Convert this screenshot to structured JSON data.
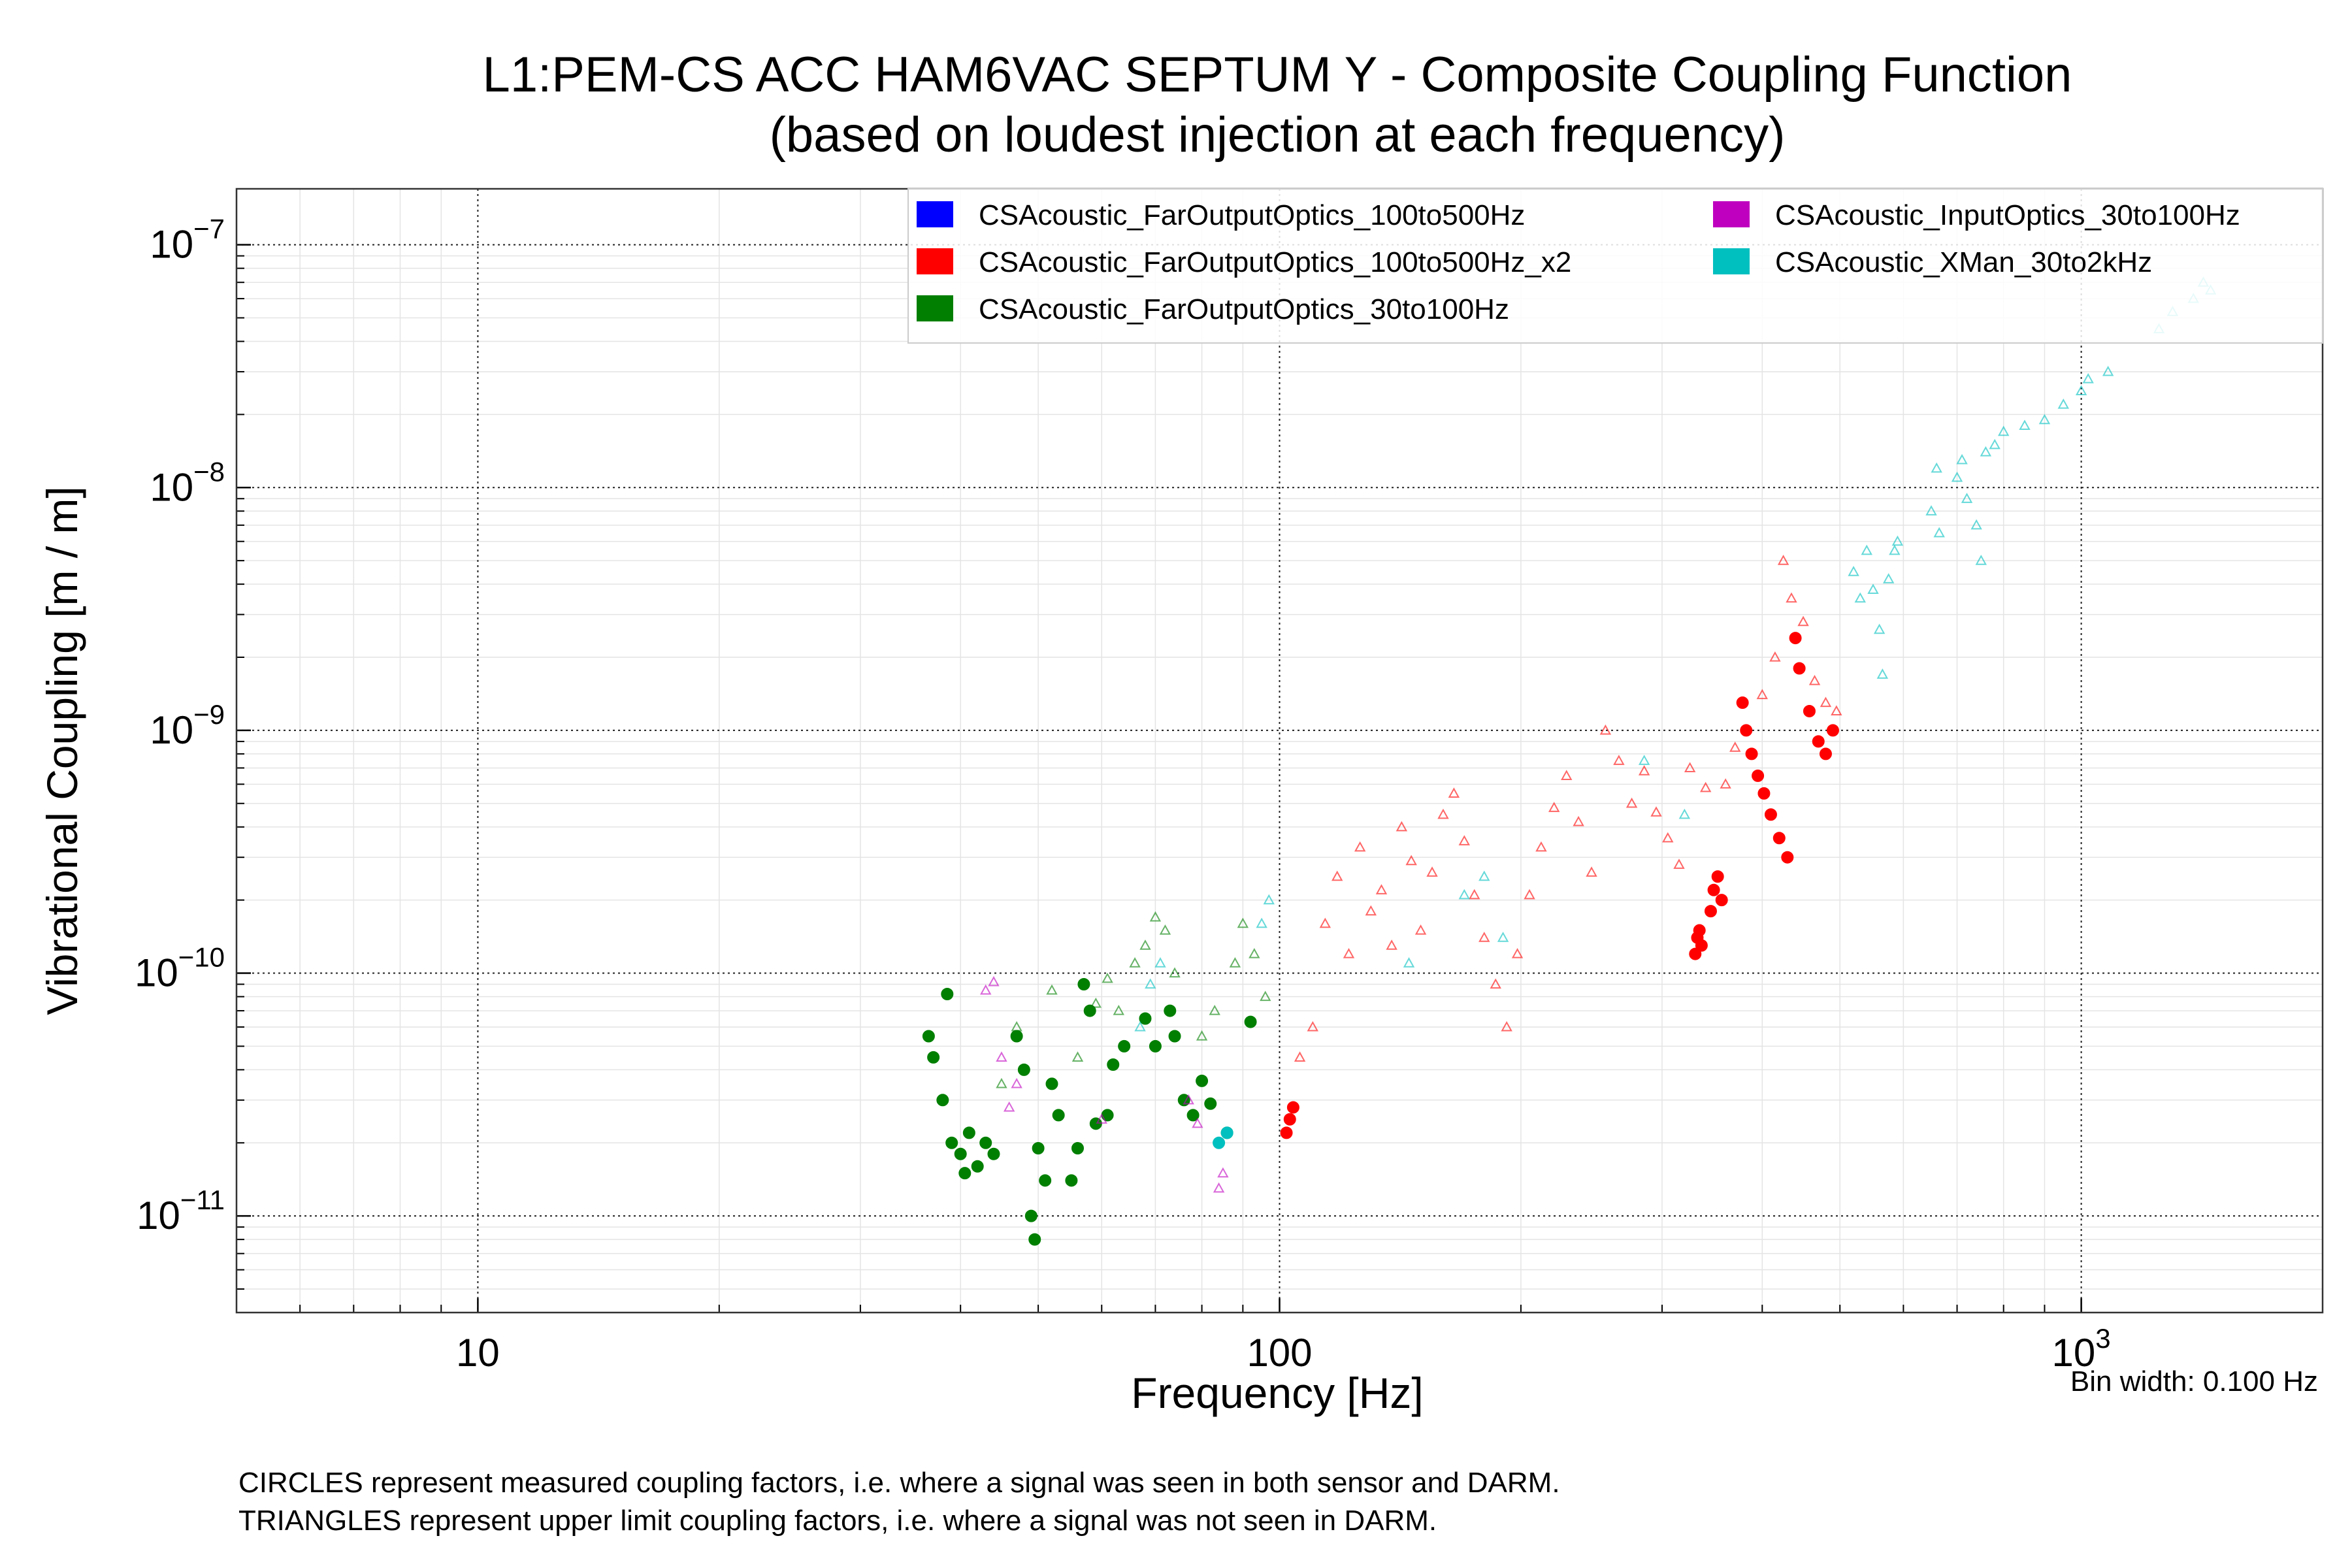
{
  "chart_data": {
    "type": "scatter",
    "title": "L1:PEM-CS ACC HAM6VAC SEPTUM Y - Composite Coupling Function",
    "subtitle": "(based on loudest injection at each frequency)",
    "xlabel": "Frequency [Hz]",
    "ylabel": "Vibrational Coupling [m / m]",
    "x_scale": "log",
    "y_scale": "log",
    "xlim": [
      5,
      2000
    ],
    "ylim": [
      4e-12,
      1.7e-07
    ],
    "x_ticks": [
      {
        "value": 10,
        "label": "10"
      },
      {
        "value": 100,
        "label": "100"
      },
      {
        "value": 1000,
        "label": "10^3"
      }
    ],
    "y_ticks": [
      {
        "value": 1e-11,
        "label": "10^-11"
      },
      {
        "value": 1e-10,
        "label": "10^-10"
      },
      {
        "value": 1e-09,
        "label": "10^-9"
      },
      {
        "value": 1e-08,
        "label": "10^-8"
      },
      {
        "value": 1e-07,
        "label": "10^-7"
      }
    ],
    "grid": true,
    "legend_position": "top-right",
    "bin_width_label": "Bin width: 0.100 Hz",
    "notes": [
      "CIRCLES represent measured coupling factors, i.e. where a signal was seen in both sensor and DARM.",
      "TRIANGLES represent upper limit coupling factors, i.e. where a signal was not seen in DARM."
    ],
    "series": [
      {
        "name": "CSAcoustic_FarOutputOptics_100to500Hz",
        "color": "#0000ff",
        "measured": [],
        "upper_limits": []
      },
      {
        "name": "CSAcoustic_FarOutputOptics_100to500Hz_x2",
        "color": "#ff0000",
        "measured": [
          [
            102,
            2.2e-11
          ],
          [
            103,
            2.5e-11
          ],
          [
            104,
            2.8e-11
          ],
          [
            330,
            1.2e-10
          ],
          [
            332,
            1.4e-10
          ],
          [
            334,
            1.5e-10
          ],
          [
            336,
            1.3e-10
          ],
          [
            345,
            1.8e-10
          ],
          [
            348,
            2.2e-10
          ],
          [
            352,
            2.5e-10
          ],
          [
            356,
            2e-10
          ],
          [
            378,
            1.3e-09
          ],
          [
            382,
            1e-09
          ],
          [
            388,
            8e-10
          ],
          [
            395,
            6.5e-10
          ],
          [
            402,
            5.5e-10
          ],
          [
            410,
            4.5e-10
          ],
          [
            420,
            3.6e-10
          ],
          [
            430,
            3e-10
          ],
          [
            440,
            2.4e-09
          ],
          [
            445,
            1.8e-09
          ],
          [
            458,
            1.2e-09
          ],
          [
            470,
            9e-10
          ],
          [
            480,
            8e-10
          ],
          [
            490,
            1e-09
          ]
        ],
        "upper_limits": [
          [
            106,
            4.5e-11
          ],
          [
            110,
            6e-11
          ],
          [
            114,
            1.6e-10
          ],
          [
            118,
            2.5e-10
          ],
          [
            122,
            1.2e-10
          ],
          [
            126,
            3.3e-10
          ],
          [
            130,
            1.8e-10
          ],
          [
            134,
            2.2e-10
          ],
          [
            138,
            1.3e-10
          ],
          [
            142,
            4e-10
          ],
          [
            146,
            2.9e-10
          ],
          [
            150,
            1.5e-10
          ],
          [
            155,
            2.6e-10
          ],
          [
            160,
            4.5e-10
          ],
          [
            165,
            5.5e-10
          ],
          [
            170,
            3.5e-10
          ],
          [
            175,
            2.1e-10
          ],
          [
            180,
            1.4e-10
          ],
          [
            186,
            9e-11
          ],
          [
            192,
            6e-11
          ],
          [
            198,
            1.2e-10
          ],
          [
            205,
            2.1e-10
          ],
          [
            212,
            3.3e-10
          ],
          [
            220,
            4.8e-10
          ],
          [
            228,
            6.5e-10
          ],
          [
            236,
            4.2e-10
          ],
          [
            245,
            2.6e-10
          ],
          [
            255,
            1e-09
          ],
          [
            265,
            7.5e-10
          ],
          [
            275,
            5e-10
          ],
          [
            285,
            6.8e-10
          ],
          [
            295,
            4.6e-10
          ],
          [
            305,
            3.6e-10
          ],
          [
            315,
            2.8e-10
          ],
          [
            325,
            7e-10
          ],
          [
            340,
            5.8e-10
          ],
          [
            360,
            6e-10
          ],
          [
            370,
            8.5e-10
          ],
          [
            400,
            1.4e-09
          ],
          [
            415,
            2e-09
          ],
          [
            425,
            5e-09
          ],
          [
            435,
            3.5e-09
          ],
          [
            450,
            2.8e-09
          ],
          [
            465,
            1.6e-09
          ],
          [
            480,
            1.3e-09
          ],
          [
            495,
            1.2e-09
          ]
        ]
      },
      {
        "name": "CSAcoustic_FarOutputOptics_30to100Hz",
        "color": "#007f00",
        "measured": [
          [
            36.5,
            5.5e-11
          ],
          [
            37,
            4.5e-11
          ],
          [
            38,
            3e-11
          ],
          [
            38.5,
            8.2e-11
          ],
          [
            39,
            2e-11
          ],
          [
            40,
            1.8e-11
          ],
          [
            40.5,
            1.5e-11
          ],
          [
            41,
            2.2e-11
          ],
          [
            42,
            1.6e-11
          ],
          [
            43,
            2e-11
          ],
          [
            44,
            1.8e-11
          ],
          [
            47,
            5.5e-11
          ],
          [
            48,
            4e-11
          ],
          [
            49,
            1e-11
          ],
          [
            49.5,
            8e-12
          ],
          [
            50,
            1.9e-11
          ],
          [
            51,
            1.4e-11
          ],
          [
            52,
            3.5e-11
          ],
          [
            53,
            2.6e-11
          ],
          [
            55,
            1.4e-11
          ],
          [
            56,
            1.9e-11
          ],
          [
            57,
            9e-11
          ],
          [
            58,
            7e-11
          ],
          [
            59,
            2.4e-11
          ],
          [
            61,
            2.6e-11
          ],
          [
            62,
            4.2e-11
          ],
          [
            64,
            5e-11
          ],
          [
            68,
            6.5e-11
          ],
          [
            70,
            5e-11
          ],
          [
            73,
            7e-11
          ],
          [
            74,
            5.5e-11
          ],
          [
            76,
            3e-11
          ],
          [
            78,
            2.6e-11
          ],
          [
            80,
            3.6e-11
          ],
          [
            82,
            2.9e-11
          ],
          [
            86,
            2.2e-11
          ],
          [
            92,
            6.3e-11
          ]
        ],
        "upper_limits": [
          [
            45,
            3.5e-11
          ],
          [
            47,
            6e-11
          ],
          [
            52,
            8.5e-11
          ],
          [
            56,
            4.5e-11
          ],
          [
            59,
            7.5e-11
          ],
          [
            61,
            9.5e-11
          ],
          [
            63,
            7e-11
          ],
          [
            66,
            1.1e-10
          ],
          [
            68,
            1.3e-10
          ],
          [
            70,
            1.7e-10
          ],
          [
            72,
            1.5e-10
          ],
          [
            74,
            1e-10
          ],
          [
            80,
            5.5e-11
          ],
          [
            83,
            7e-11
          ],
          [
            88,
            1.1e-10
          ],
          [
            90,
            1.6e-10
          ],
          [
            93,
            1.2e-10
          ],
          [
            96,
            8e-11
          ]
        ]
      },
      {
        "name": "CSAcoustic_InputOptics_30to100Hz",
        "color": "#bf00bf",
        "measured": [],
        "upper_limits": [
          [
            43,
            8.5e-11
          ],
          [
            44,
            9.2e-11
          ],
          [
            45,
            4.5e-11
          ],
          [
            46,
            2.8e-11
          ],
          [
            47,
            3.5e-11
          ],
          [
            60,
            2.5e-11
          ],
          [
            77,
            3e-11
          ],
          [
            79,
            2.4e-11
          ],
          [
            84,
            1.3e-11
          ],
          [
            85,
            1.5e-11
          ]
        ]
      },
      {
        "name": "CSAcoustic_XMan_30to2kHz",
        "color": "#00bfbf",
        "measured": [
          [
            84,
            2e-11
          ],
          [
            86,
            2.2e-11
          ]
        ],
        "upper_limits": [
          [
            67,
            6e-11
          ],
          [
            69,
            9e-11
          ],
          [
            71,
            1.1e-10
          ],
          [
            95,
            1.6e-10
          ],
          [
            97,
            2e-10
          ],
          [
            145,
            1.1e-10
          ],
          [
            170,
            2.1e-10
          ],
          [
            180,
            2.5e-10
          ],
          [
            190,
            1.4e-10
          ],
          [
            285,
            7.5e-10
          ],
          [
            320,
            4.5e-10
          ],
          [
            520,
            4.5e-09
          ],
          [
            530,
            3.5e-09
          ],
          [
            540,
            5.5e-09
          ],
          [
            550,
            3.8e-09
          ],
          [
            560,
            2.6e-09
          ],
          [
            565,
            1.7e-09
          ],
          [
            575,
            4.2e-09
          ],
          [
            585,
            5.5e-09
          ],
          [
            590,
            6e-09
          ],
          [
            650,
            8e-09
          ],
          [
            660,
            1.2e-08
          ],
          [
            665,
            6.5e-09
          ],
          [
            700,
            1.1e-08
          ],
          [
            710,
            1.3e-08
          ],
          [
            720,
            9e-09
          ],
          [
            740,
            7e-09
          ],
          [
            750,
            5e-09
          ],
          [
            760,
            1.4e-08
          ],
          [
            780,
            1.5e-08
          ],
          [
            800,
            1.7e-08
          ],
          [
            850,
            1.8e-08
          ],
          [
            900,
            1.9e-08
          ],
          [
            950,
            2.2e-08
          ],
          [
            1000,
            2.5e-08
          ],
          [
            1020,
            2.8e-08
          ],
          [
            1080,
            3e-08
          ],
          [
            1250,
            4.5e-08
          ],
          [
            1300,
            5.3e-08
          ],
          [
            1380,
            6e-08
          ],
          [
            1420,
            7e-08
          ],
          [
            1450,
            6.5e-08
          ]
        ]
      }
    ]
  }
}
